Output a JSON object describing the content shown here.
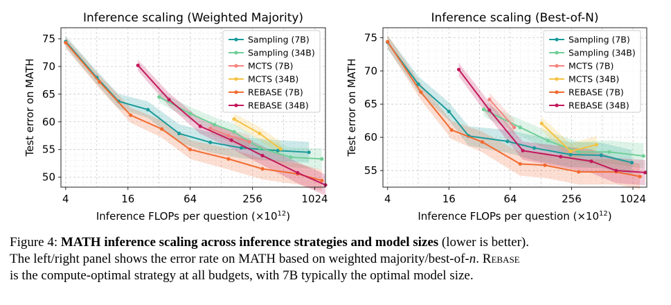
{
  "chart_data": [
    {
      "type": "line",
      "title": "Inference scaling (Weighted Majority)",
      "xlabel": "Inference FLOPs per question (×10",
      "xlabel_exp": "12",
      "xlabel_close": ")",
      "ylabel": "Test error on MATH",
      "x_scale": "log2",
      "xlim": [
        3.6,
        1300
      ],
      "ylim": [
        48.2,
        77
      ],
      "x_ticks": [
        4,
        16,
        64,
        256,
        1024
      ],
      "x_tick_labels": [
        "4",
        "16",
        "64",
        "256",
        "1024"
      ],
      "y_ticks": [
        50,
        55,
        60,
        65,
        70,
        75
      ],
      "y_tick_labels": [
        "50",
        "55",
        "60",
        "65",
        "70",
        "75"
      ],
      "grid": true,
      "legend_position": "top-right",
      "series": [
        {
          "name": "Sampling (7B)",
          "color": "#1a9a9a",
          "x": [
            4,
            8,
            13,
            25,
            50,
            100,
            200,
            450,
            900
          ],
          "y": [
            74.5,
            68,
            63.7,
            62.2,
            57.9,
            56.3,
            55.3,
            54.8,
            54.5
          ]
        },
        {
          "name": "Sampling (34B)",
          "color": "#6fcf97",
          "x": [
            32,
            64,
            110,
            170,
            300,
            600,
            1200
          ],
          "y": [
            64.5,
            61.5,
            59.5,
            58.2,
            55.3,
            53.6,
            53.3
          ]
        },
        {
          "name": "MCTS (7B)",
          "color": "#f4837d",
          "x": [
            100,
            150,
            240
          ],
          "y": [
            58.8,
            57.5,
            56.4
          ]
        },
        {
          "name": "MCTS (34B)",
          "color": "#f5c242",
          "x": [
            170,
            300,
            480
          ],
          "y": [
            60.5,
            57.9,
            55.1
          ]
        },
        {
          "name": "REBASE (7B)",
          "color": "#f26b30",
          "x": [
            4,
            8.5,
            17,
            34,
            64,
            150,
            320,
            700,
            1200
          ],
          "y": [
            74.3,
            67.2,
            61.2,
            58.7,
            55,
            53.3,
            51.5,
            50.6,
            49.4
          ]
        },
        {
          "name": "REBASE (34B)",
          "color": "#c2185b",
          "x": [
            20,
            40,
            80,
            160,
            320,
            700,
            1300
          ],
          "y": [
            70.2,
            64,
            59.2,
            56.7,
            53.9,
            50.8,
            48.6
          ]
        }
      ]
    },
    {
      "type": "line",
      "title": "Inference scaling (Best-of-N)",
      "xlabel": "Inference FLOPs per question (×10",
      "xlabel_exp": "12",
      "xlabel_close": ")",
      "ylabel": "Test error on MATH",
      "x_scale": "log2",
      "xlim": [
        3.6,
        1400
      ],
      "ylim": [
        52.5,
        76.5
      ],
      "x_ticks": [
        4,
        16,
        64,
        256,
        1024
      ],
      "x_tick_labels": [
        "4",
        "16",
        "64",
        "256",
        "1024"
      ],
      "y_ticks": [
        55,
        60,
        65,
        70,
        75
      ],
      "y_tick_labels": [
        "55",
        "60",
        "65",
        "70",
        "75"
      ],
      "grid": true,
      "legend_position": "top-right",
      "series": [
        {
          "name": "Sampling (7B)",
          "color": "#1a9a9a",
          "x": [
            4,
            8,
            16,
            25,
            60,
            110,
            250,
            500,
            1000
          ],
          "y": [
            74.3,
            68,
            63.9,
            60.2,
            59.4,
            58.4,
            57.4,
            57.3,
            56.2
          ]
        },
        {
          "name": "Sampling (34B)",
          "color": "#6fcf97",
          "x": [
            35,
            80,
            150,
            300,
            600,
            1300
          ],
          "y": [
            64.2,
            61.5,
            59.5,
            57.8,
            57.8,
            57.2
          ]
        },
        {
          "name": "MCTS (7B)",
          "color": "#f4837d",
          "x": [
            40,
            70
          ],
          "y": [
            65.7,
            61.5
          ]
        },
        {
          "name": "MCTS (34B)",
          "color": "#f5c242",
          "x": [
            130,
            250,
            450
          ],
          "y": [
            62.1,
            57.9,
            58.9
          ]
        },
        {
          "name": "REBASE (7B)",
          "color": "#f26b30",
          "x": [
            4,
            8.5,
            17,
            34,
            80,
            140,
            300,
            700,
            1200
          ],
          "y": [
            74.4,
            66.8,
            61.1,
            59.3,
            56,
            55.8,
            54.8,
            54.8,
            54.1
          ]
        },
        {
          "name": "REBASE (34B)",
          "color": "#c2185b",
          "x": [
            20,
            40,
            85,
            200,
            400,
            700,
            1350
          ],
          "y": [
            70.2,
            64.1,
            58,
            57.1,
            56.4,
            55,
            54.7
          ]
        }
      ]
    }
  ],
  "caption": {
    "figure_label": "Figure 4:",
    "bold_title": "MATH inference scaling across inference strategies and model sizes",
    "after_title": " (lower is better).",
    "line2_part1": "The left/right panel shows the error rate on MATH based on weighted majority/best-of-",
    "line2_italic": "n",
    "line2_part2": ". ",
    "line2_smallcaps": "Rebase",
    "line3": "is the compute-optimal strategy at all budgets, with 7B typically the optimal model size."
  }
}
